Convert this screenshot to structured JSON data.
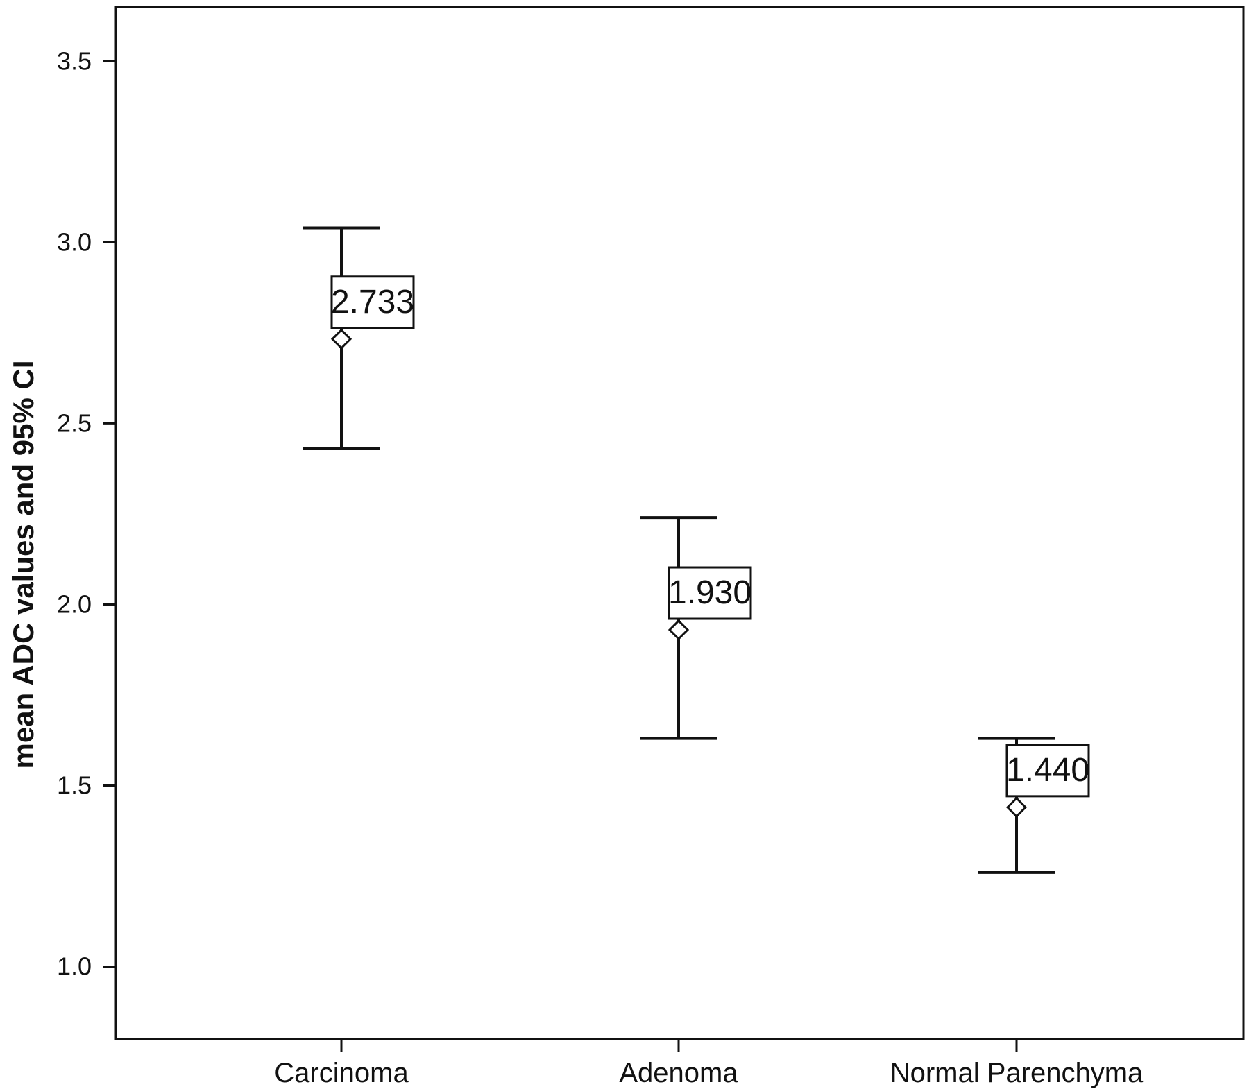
{
  "chart_data": {
    "type": "scatter",
    "title": "",
    "xlabel": "",
    "ylabel": "mean ADC values and 95% CI",
    "ylim": [
      0.8,
      3.65
    ],
    "yticks": [
      "1.0",
      "1.5",
      "2.0",
      "2.5",
      "3.0",
      "3.5"
    ],
    "ytick_values": [
      1.0,
      1.5,
      2.0,
      2.5,
      3.0,
      3.5
    ],
    "grid": false,
    "categories": [
      "Carcinoma",
      "Adenoma",
      "Normal Parenchyma"
    ],
    "series": [
      {
        "means": [
          2.733,
          1.93,
          1.44
        ],
        "ci_lower": [
          2.43,
          1.63,
          1.26
        ],
        "ci_upper": [
          3.04,
          2.24,
          1.63
        ],
        "mean_labels": [
          "2.733",
          "1.930",
          "1.440"
        ]
      }
    ]
  }
}
